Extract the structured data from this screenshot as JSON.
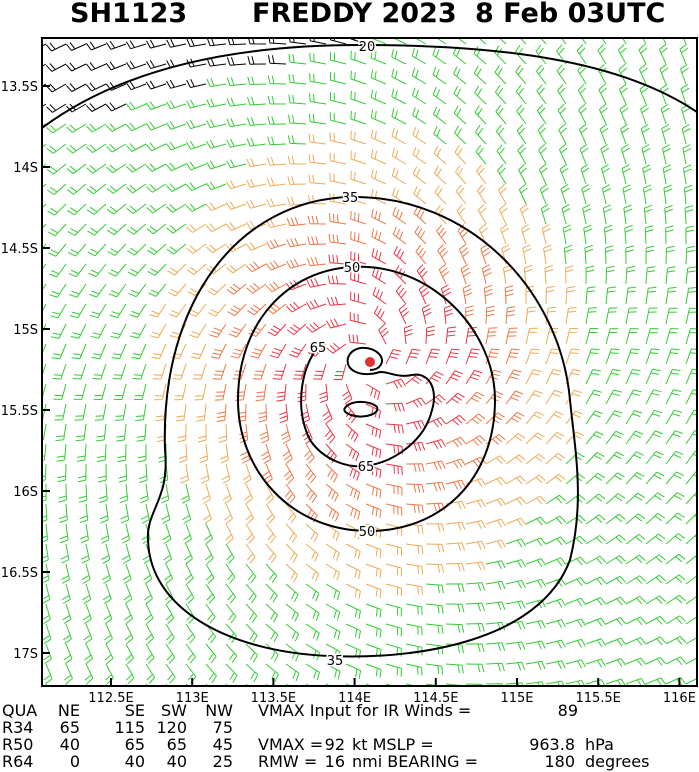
{
  "header": {
    "id": "SH1123",
    "storm": "FREDDY 2023",
    "time": "8 Feb 03UTC"
  },
  "lat_ticks": [
    "13.5S",
    "14S",
    "14.5S",
    "15S",
    "15.5S",
    "16S",
    "16.5S",
    "17S"
  ],
  "lon_ticks": [
    "112.5E",
    "113E",
    "113.5E",
    "114E",
    "114.5E",
    "115E",
    "115.5E",
    "116E"
  ],
  "contour_labels": [
    "20",
    "35",
    "50",
    "65",
    "65",
    "50",
    "35"
  ],
  "table": {
    "header": [
      "QUA",
      "NE",
      "SE",
      "SW",
      "NW"
    ],
    "rows": [
      [
        "R34",
        65,
        115,
        120,
        75
      ],
      [
        "R50",
        40,
        65,
        65,
        45
      ],
      [
        "R64",
        0,
        40,
        40,
        25
      ]
    ]
  },
  "info": [
    [
      "VMAX Input for IR Winds =",
      89
    ],
    [
      "VMAX =",
      92,
      "kt MSLP =",
      963.8,
      "hPa"
    ],
    [
      "RMW =",
      16,
      "nmi BEARING =",
      180,
      "degrees"
    ]
  ]
}
